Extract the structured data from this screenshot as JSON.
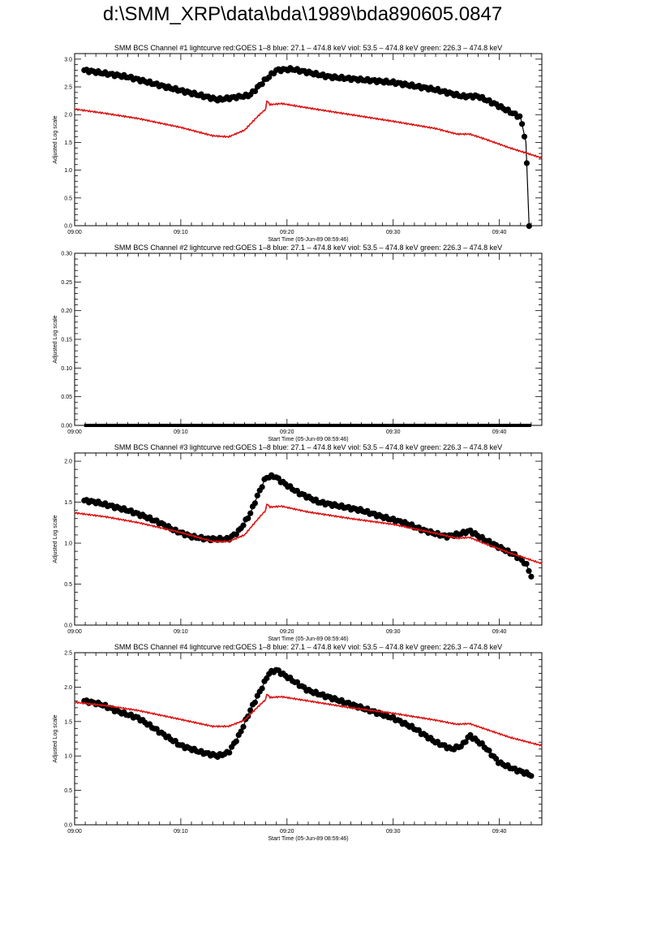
{
  "page": {
    "title": "d:\\SMM_XRP\\data\\bda\\1989\\bda890605.0847"
  },
  "colors": {
    "goes": "#dd1111",
    "bcs": "#000000"
  },
  "chart_data": [
    {
      "type": "line",
      "title": "SMM BCS Channel #1 lightcurve  red:GOES 1–8  blue: 27.1 – 474.8 keV  viol: 53.5 – 474.8 keV  green: 226.3 – 474.8 keV",
      "xlabel": "Start Time (05-Jun-89 08:59:46)",
      "ylabel": "Adjusted Log scale",
      "xlim": [
        0,
        44
      ],
      "ylim": [
        0,
        3.1
      ],
      "xticks": [
        0,
        10,
        20,
        30,
        40
      ],
      "xtick_labels": [
        "09:00",
        "09:10",
        "09:20",
        "09:30",
        "09:40"
      ],
      "yticks": [
        0,
        0.5,
        1.0,
        1.5,
        2.0,
        2.5,
        3.0
      ],
      "ytick_labels": [
        "0.0",
        "0.5",
        "1.0",
        "1.5",
        "2.0",
        "2.5",
        "3.0"
      ],
      "series": [
        {
          "role": "bcs",
          "style": "dots",
          "x": [
            0.9,
            5,
            9,
            13.5,
            16.5,
            17.8,
            19,
            20.5,
            24,
            30,
            34,
            36.5,
            38,
            39.5,
            41,
            42,
            42.5,
            42.8
          ],
          "values": [
            2.8,
            2.68,
            2.48,
            2.27,
            2.35,
            2.6,
            2.8,
            2.82,
            2.68,
            2.58,
            2.45,
            2.33,
            2.33,
            2.2,
            2.05,
            1.95,
            1.5,
            0.0
          ]
        },
        {
          "role": "goes",
          "style": "line",
          "x": [
            0,
            3,
            6,
            10,
            13,
            14.5,
            16,
            17.3,
            18,
            18.1,
            18.4,
            19.5,
            22,
            26,
            30,
            34,
            36,
            37.2,
            38.5,
            41,
            44
          ],
          "values": [
            2.1,
            2.02,
            1.93,
            1.77,
            1.62,
            1.6,
            1.72,
            1.98,
            2.1,
            2.25,
            2.18,
            2.2,
            2.12,
            2.0,
            1.88,
            1.75,
            1.65,
            1.65,
            1.57,
            1.4,
            1.22
          ]
        }
      ]
    },
    {
      "type": "line",
      "title": "SMM BCS Channel #2 lightcurve  red:GOES 1–8  blue: 27.1 – 474.8 keV  viol: 53.5 – 474.8 keV  green: 226.3 – 474.8 keV",
      "xlabel": "Start Time (05-Jun-89 08:59:46)",
      "ylabel": "Adjusted Log scale",
      "xlim": [
        0,
        44
      ],
      "ylim": [
        0,
        0.3
      ],
      "xticks": [
        0,
        10,
        20,
        30,
        40
      ],
      "xtick_labels": [
        "09:00",
        "09:10",
        "09:20",
        "09:30",
        "09:40"
      ],
      "yticks": [
        0,
        0.05,
        0.1,
        0.15,
        0.2,
        0.25,
        0.3
      ],
      "ytick_labels": [
        "0.00",
        "0.05",
        "0.10",
        "0.15",
        "0.20",
        "0.25",
        "0.30"
      ],
      "series": [
        {
          "role": "bcs",
          "style": "flat",
          "x": [
            0.9,
            43.0
          ],
          "values": [
            0.0,
            0.0
          ]
        }
      ]
    },
    {
      "type": "line",
      "title": "SMM BCS Channel #3 lightcurve  red:GOES 1–8  blue: 27.1 – 474.8 keV  viol: 53.5 – 474.8 keV  green: 226.3 – 474.8 keV",
      "xlabel": "Start Time (05-Jun-89 08:59:46)",
      "ylabel": "Adjusted Log scale",
      "xlim": [
        0,
        44
      ],
      "ylim": [
        0,
        2.1
      ],
      "xticks": [
        0,
        10,
        20,
        30,
        40
      ],
      "xtick_labels": [
        "09:00",
        "09:10",
        "09:20",
        "09:30",
        "09:40"
      ],
      "yticks": [
        0,
        0.5,
        1.0,
        1.5,
        2.0
      ],
      "ytick_labels": [
        "0.0",
        "0.5",
        "1.0",
        "1.5",
        "2.0"
      ],
      "series": [
        {
          "role": "bcs",
          "style": "dots",
          "x": [
            0.9,
            2,
            3.5,
            5,
            6.5,
            8,
            9.5,
            11,
            12.5,
            14.5,
            15.5,
            16.5,
            17.3,
            18,
            18.8,
            19.5,
            21,
            23,
            25,
            27,
            29,
            31,
            33,
            35,
            36.5,
            37.2,
            38.5,
            40,
            41.5,
            42.5,
            43
          ],
          "values": [
            1.52,
            1.5,
            1.45,
            1.4,
            1.33,
            1.25,
            1.15,
            1.08,
            1.05,
            1.05,
            1.15,
            1.35,
            1.6,
            1.8,
            1.82,
            1.75,
            1.62,
            1.5,
            1.45,
            1.4,
            1.32,
            1.25,
            1.15,
            1.08,
            1.12,
            1.15,
            1.05,
            0.95,
            0.85,
            0.75,
            0.6
          ]
        },
        {
          "role": "goes",
          "style": "line",
          "x": [
            0,
            3,
            6,
            10,
            13,
            14.5,
            16,
            17.3,
            18,
            18.1,
            18.4,
            19.5,
            22,
            26,
            30,
            34,
            36,
            37.2,
            38.5,
            41,
            44
          ],
          "values": [
            1.37,
            1.32,
            1.25,
            1.13,
            1.02,
            1.02,
            1.1,
            1.3,
            1.4,
            1.48,
            1.44,
            1.45,
            1.38,
            1.3,
            1.23,
            1.12,
            1.06,
            1.07,
            1.0,
            0.88,
            0.75
          ]
        }
      ]
    },
    {
      "type": "line",
      "title": "SMM BCS Channel #4 lightcurve  red:GOES 1–8  blue: 27.1 – 474.8 keV  viol: 53.5 – 474.8 keV  green: 226.3 – 474.8 keV",
      "xlabel": "Start Time (05-Jun-89 08:59:46)",
      "ylabel": "Adjusted Log scale",
      "xlim": [
        0,
        44
      ],
      "ylim": [
        0,
        2.5
      ],
      "xticks": [
        0,
        10,
        20,
        30,
        40
      ],
      "xtick_labels": [
        "09:00",
        "09:10",
        "09:20",
        "09:30",
        "09:40"
      ],
      "yticks": [
        0,
        0.5,
        1.0,
        1.5,
        2.0,
        2.5
      ],
      "ytick_labels": [
        "0.0",
        "0.5",
        "1.0",
        "1.5",
        "2.0",
        "2.5"
      ],
      "series": [
        {
          "role": "bcs",
          "style": "dots",
          "x": [
            0.9,
            2.5,
            4,
            6,
            8,
            10,
            12,
            13.5,
            14.5,
            15.5,
            16.5,
            17.5,
            18.3,
            19,
            20,
            22,
            24,
            26,
            28,
            30,
            32,
            34,
            35.5,
            36.5,
            37.2,
            38.5,
            40,
            41.5,
            42.5,
            43
          ],
          "values": [
            1.8,
            1.75,
            1.65,
            1.55,
            1.35,
            1.15,
            1.05,
            1.0,
            1.05,
            1.3,
            1.65,
            1.95,
            2.2,
            2.25,
            2.15,
            1.95,
            1.85,
            1.75,
            1.65,
            1.55,
            1.4,
            1.2,
            1.1,
            1.15,
            1.3,
            1.15,
            0.9,
            0.8,
            0.75,
            0.72
          ]
        },
        {
          "role": "goes",
          "style": "line",
          "x": [
            0,
            3,
            6,
            10,
            13,
            14.5,
            16,
            17.3,
            18,
            18.1,
            18.4,
            19.5,
            22,
            26,
            30,
            34,
            36,
            37.2,
            38.5,
            41,
            44
          ],
          "values": [
            1.78,
            1.73,
            1.66,
            1.53,
            1.43,
            1.43,
            1.52,
            1.72,
            1.82,
            1.9,
            1.85,
            1.86,
            1.8,
            1.7,
            1.62,
            1.52,
            1.46,
            1.47,
            1.4,
            1.27,
            1.15
          ]
        }
      ]
    }
  ]
}
